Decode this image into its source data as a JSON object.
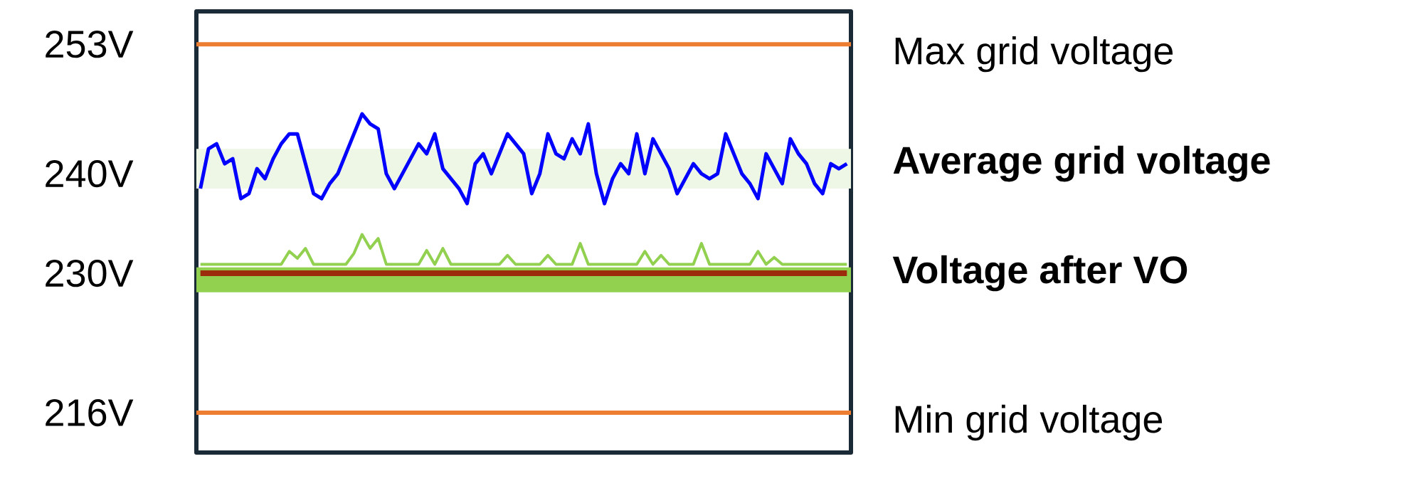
{
  "chart_data": {
    "type": "line",
    "categories": [
      null,
      null,
      null,
      null,
      null,
      null,
      null,
      null,
      null,
      null,
      null,
      null,
      null,
      null,
      null,
      null,
      null,
      null,
      null,
      null,
      null,
      null,
      null,
      null,
      null,
      null,
      null,
      null,
      null,
      null,
      null,
      null,
      null,
      null,
      null,
      null,
      null,
      null,
      null,
      null,
      null,
      null,
      null,
      null,
      null,
      null,
      null,
      null,
      null,
      null,
      null,
      null,
      null,
      null,
      null,
      null,
      null,
      null,
      null,
      null,
      null,
      null,
      null,
      null,
      null,
      null,
      null,
      null,
      null,
      null,
      null,
      null,
      null,
      null,
      null,
      null,
      null,
      null,
      null,
      null,
      null
    ],
    "series": [
      {
        "type": "line",
        "color": "#92d050",
        "values": [
          230.9,
          230.9,
          230.9,
          230.9,
          230.9,
          230.9,
          230.9,
          230.9,
          230.9,
          230.9,
          230.9,
          232.2,
          231.5,
          232.5,
          230.9,
          230.9,
          230.9,
          230.9,
          230.9,
          232.0,
          233.9,
          232.5,
          233.5,
          230.9,
          230.9,
          230.9,
          230.9,
          230.9,
          232.3,
          230.9,
          232.5,
          230.9,
          230.9,
          230.9,
          230.9,
          230.9,
          230.9,
          230.9,
          231.8,
          230.9,
          230.9,
          230.9,
          230.9,
          231.8,
          230.9,
          230.9,
          230.9,
          233.0,
          230.9,
          230.9,
          230.9,
          230.9,
          230.9,
          230.9,
          230.9,
          232.2,
          230.9,
          231.8,
          230.9,
          230.9,
          230.9,
          230.9,
          233.0,
          230.9,
          230.9,
          230.9,
          230.9,
          230.9,
          230.9,
          232.2,
          230.9,
          231.6,
          230.9,
          230.9,
          230.9,
          230.9,
          230.9,
          230.9,
          230.9,
          230.9,
          230.9
        ]
      },
      {
        "name": "Voltage after VO",
        "color": "#9b2d0c",
        "values": [
          230,
          230,
          230,
          230,
          230,
          230,
          230,
          230,
          230,
          230,
          230,
          230,
          230,
          230,
          230,
          230,
          230,
          230,
          230,
          230,
          230,
          230,
          230,
          230,
          230,
          230,
          230,
          230,
          230,
          230,
          230,
          230,
          230,
          230,
          230,
          230,
          230,
          230,
          230,
          230,
          230,
          230,
          230,
          230,
          230,
          230,
          230,
          230,
          230,
          230,
          230,
          230,
          230,
          230,
          230,
          230,
          230,
          230,
          230,
          230,
          230,
          230,
          230,
          230,
          230,
          230,
          230,
          230,
          230,
          230,
          230,
          230,
          230,
          230,
          230,
          230,
          230,
          230,
          230,
          230,
          230
        ]
      },
      {
        "name": "Average grid voltage",
        "color": "#0000ff",
        "values": [
          238.5,
          242.5,
          243,
          241,
          241.5,
          237.5,
          238,
          240.5,
          239.5,
          241.5,
          243,
          244,
          244,
          241,
          238,
          237.5,
          239,
          240,
          242,
          244,
          246,
          245,
          244.5,
          240,
          238.5,
          240,
          241.5,
          243,
          242,
          244,
          240.5,
          239.5,
          238.5,
          237,
          241,
          242,
          240,
          242,
          244,
          243,
          242,
          238,
          240,
          244,
          242,
          241.5,
          243.5,
          242,
          245,
          240,
          237,
          239.5,
          241,
          240,
          244,
          240,
          243.5,
          242,
          240.5,
          238,
          239.5,
          241,
          240,
          239.5,
          240,
          244,
          242,
          240,
          239,
          237.5,
          242,
          240.5,
          239,
          243.5,
          242,
          241,
          239,
          238,
          241,
          240.5,
          241
        ]
      }
    ],
    "ylim": [
      212,
      256.3
    ],
    "yticks": [
      {
        "value": 253,
        "label": "253V"
      },
      {
        "value": 240,
        "label": "240V"
      },
      {
        "value": 230,
        "label": "230V"
      },
      {
        "value": 216,
        "label": "216V"
      }
    ],
    "tick_labels": "y",
    "ref_lines": [
      {
        "axis": "y",
        "value": 253,
        "label": "Max grid voltage",
        "color": "#ed7d31"
      },
      {
        "axis": "y",
        "value": 216,
        "label": "Min grid voltage",
        "color": "#ed7d31"
      }
    ],
    "bands": [
      {
        "axis": "y",
        "from": 238.5,
        "to": 242.5,
        "color": "#eef7e6"
      },
      {
        "axis": "y",
        "from": 228.1,
        "to": 230.6,
        "color": "#92d050"
      }
    ]
  }
}
